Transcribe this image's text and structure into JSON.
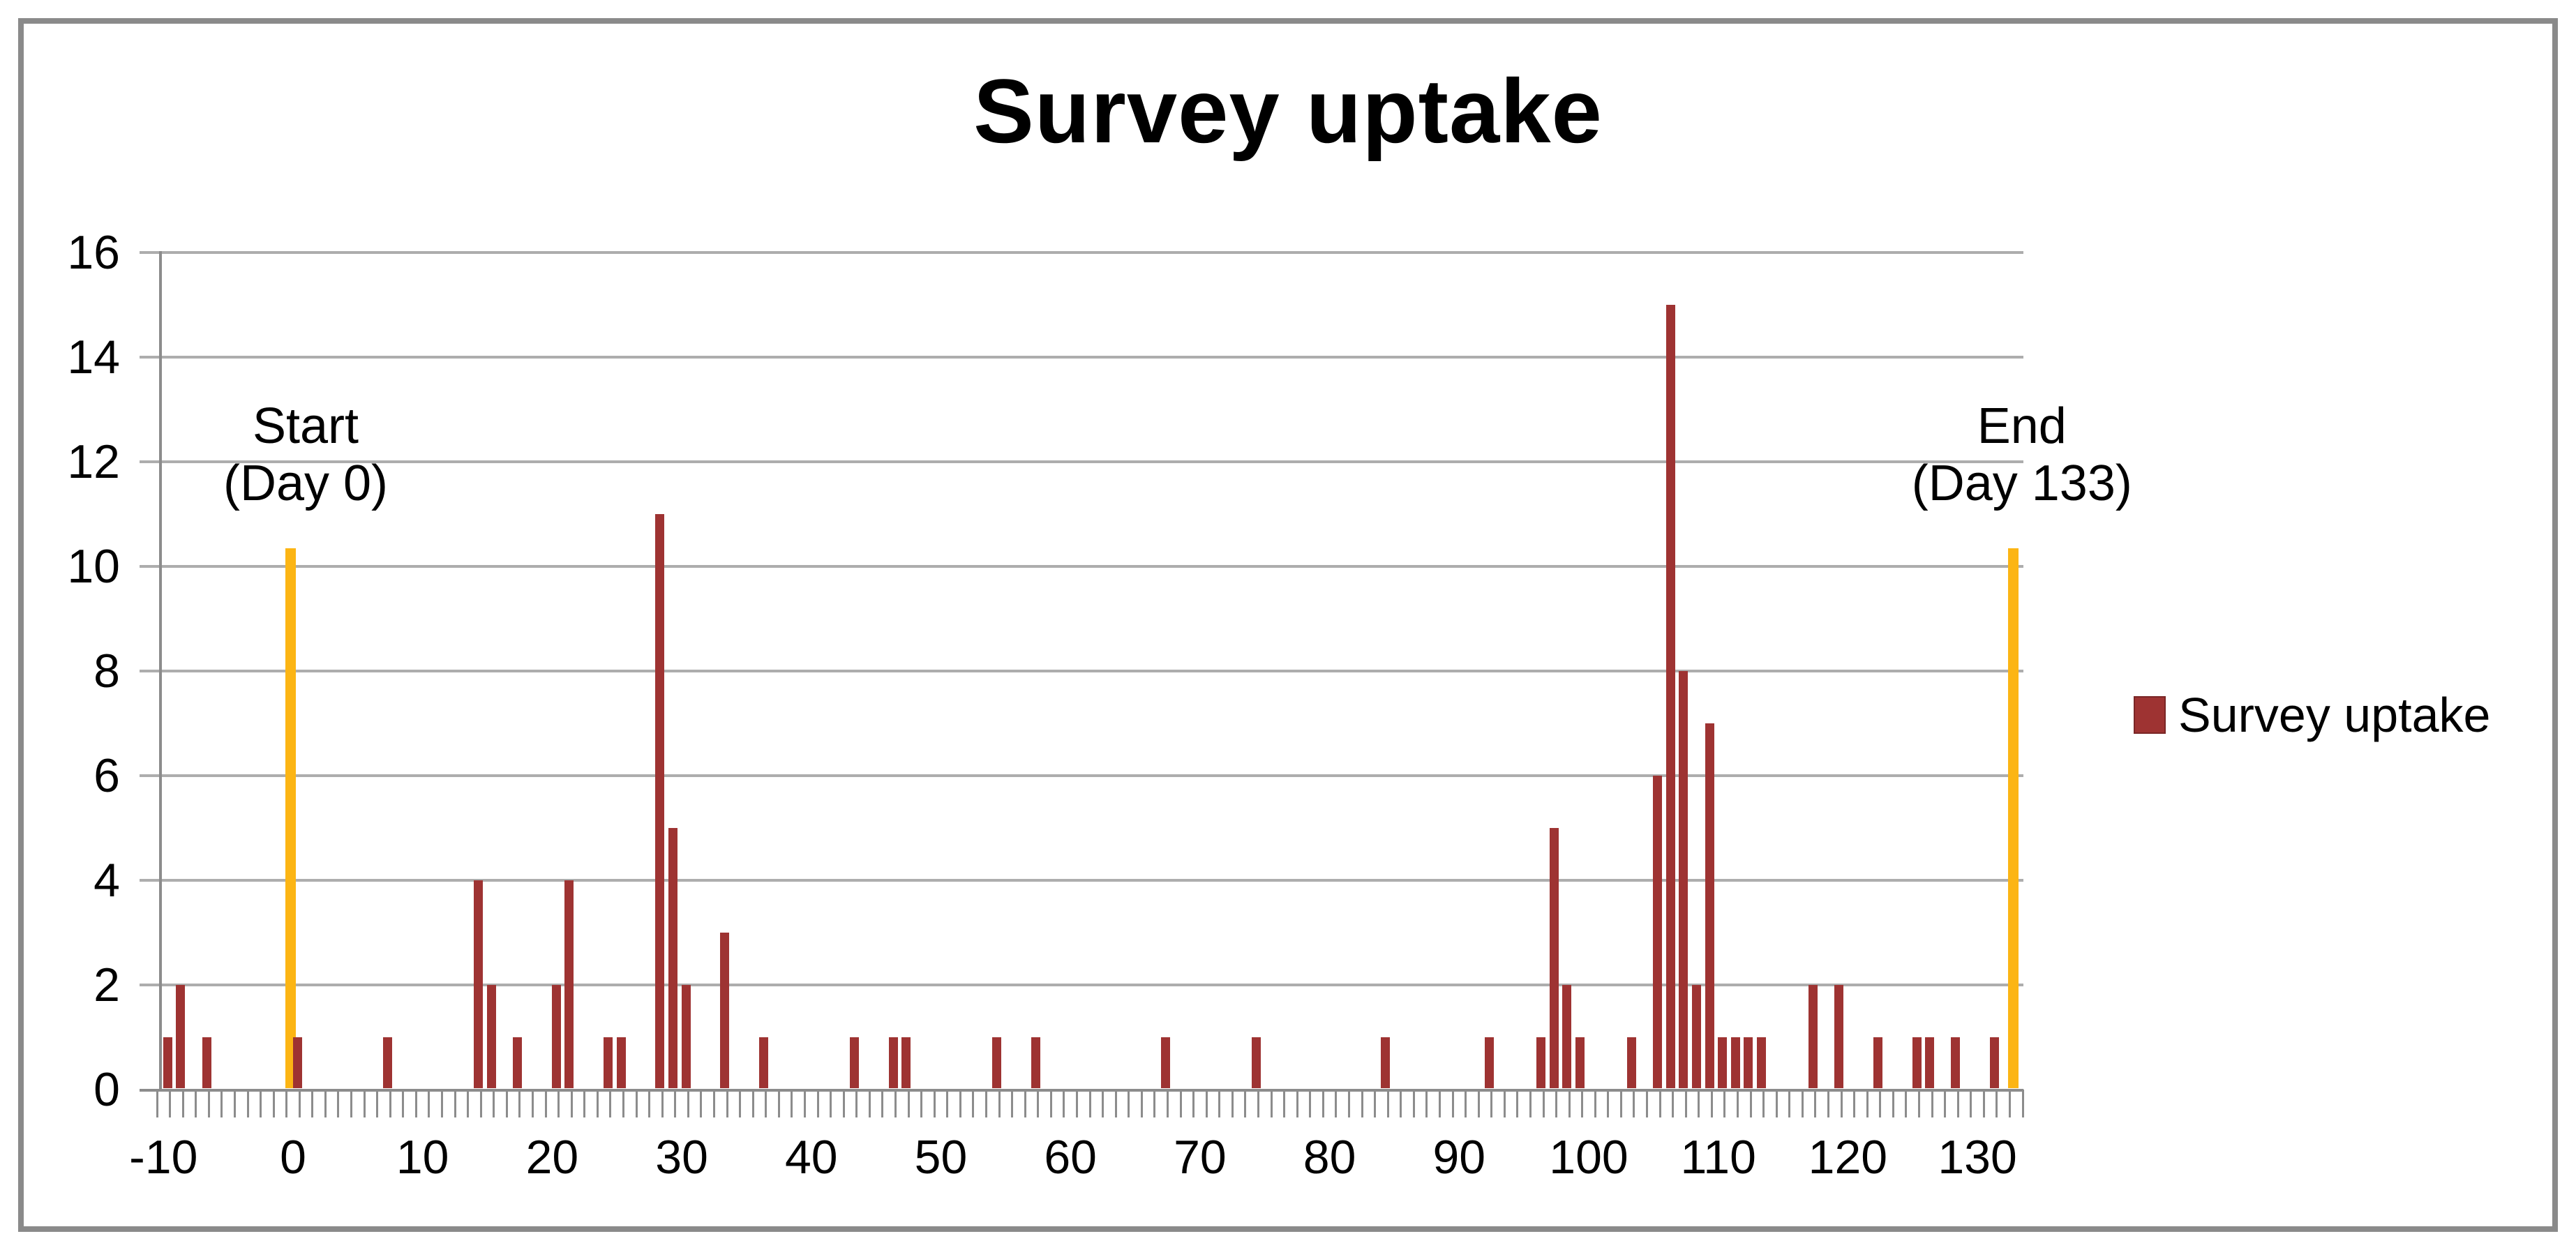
{
  "title": "Survey uptake",
  "legend": {
    "label": "Survey uptake"
  },
  "annotations": {
    "start": {
      "line1": "Start",
      "line2": "(Day 0)",
      "day": 0
    },
    "end": {
      "line1": "End",
      "line2": "(Day 133)",
      "day": 133
    }
  },
  "colors": {
    "bar": "#9e3332",
    "marker": "#fcb514",
    "grid": "#adadad",
    "axis": "#8c8c8c",
    "text": "#000000",
    "frame": "#8a8a8a"
  },
  "chart_data": {
    "type": "bar",
    "title": "Survey uptake",
    "xlabel": "",
    "ylabel": "",
    "ylim": [
      0,
      16
    ],
    "ytick_step": 2,
    "xtick_labels": [
      -10,
      0,
      10,
      20,
      30,
      40,
      50,
      60,
      70,
      80,
      90,
      100,
      110,
      120,
      130
    ],
    "minor_tick_days": [
      -10,
      134
    ],
    "grid": true,
    "legend_position": "right",
    "series": [
      {
        "name": "Survey uptake",
        "points": [
          [
            -10,
            1
          ],
          [
            -9,
            2
          ],
          [
            -7,
            1
          ],
          [
            0,
            1
          ],
          [
            7,
            1
          ],
          [
            14,
            4
          ],
          [
            15,
            2
          ],
          [
            17,
            1
          ],
          [
            20,
            2
          ],
          [
            21,
            4
          ],
          [
            24,
            1
          ],
          [
            25,
            1
          ],
          [
            28,
            11
          ],
          [
            29,
            5
          ],
          [
            30,
            2
          ],
          [
            33,
            3
          ],
          [
            36,
            1
          ],
          [
            43,
            1
          ],
          [
            46,
            1
          ],
          [
            47,
            1
          ],
          [
            54,
            1
          ],
          [
            57,
            1
          ],
          [
            67,
            1
          ],
          [
            74,
            1
          ],
          [
            84,
            1
          ],
          [
            92,
            1
          ],
          [
            96,
            1
          ],
          [
            97,
            5
          ],
          [
            98,
            2
          ],
          [
            99,
            1
          ],
          [
            103,
            1
          ],
          [
            105,
            6
          ],
          [
            106,
            15
          ],
          [
            107,
            8
          ],
          [
            108,
            2
          ],
          [
            109,
            7
          ],
          [
            110,
            1
          ],
          [
            111,
            1
          ],
          [
            112,
            1
          ],
          [
            113,
            1
          ],
          [
            117,
            2
          ],
          [
            119,
            2
          ],
          [
            122,
            1
          ],
          [
            125,
            1
          ],
          [
            126,
            1
          ],
          [
            128,
            1
          ],
          [
            131,
            1
          ]
        ]
      }
    ],
    "markers": [
      {
        "day": 0,
        "height": 10.35,
        "label": "Start (Day 0)"
      },
      {
        "day": 133,
        "height": 10.35,
        "label": "End (Day 133)"
      }
    ]
  }
}
